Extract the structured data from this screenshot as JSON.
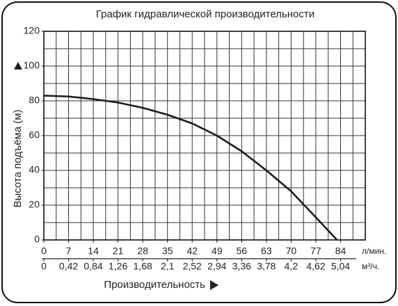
{
  "chart_data": {
    "type": "line",
    "title": "График гидравлической производительности",
    "y_label": "Высота подъёма (м)",
    "x_label": "Производительность",
    "x_unit": "л/мин.",
    "x2_unit": "м³/ч.",
    "x": [
      0,
      7,
      14,
      21,
      28,
      35,
      42,
      49,
      56,
      63,
      70,
      77,
      83
    ],
    "values": [
      83,
      82.5,
      81,
      79,
      76,
      72,
      67,
      60,
      51,
      40,
      28,
      13,
      0
    ],
    "color": "#1a1a1a",
    "xlim": [
      0,
      91
    ],
    "xticks": [
      0,
      7,
      14,
      21,
      28,
      35,
      42,
      49,
      56,
      63,
      70,
      77,
      84
    ],
    "x2lim": [
      0,
      5.46
    ],
    "x2ticks": [
      0,
      {
        "value": 0.42,
        "label": "0,42"
      },
      {
        "value": 0.84,
        "label": "0,84"
      },
      {
        "value": 1.26,
        "label": "1,26"
      },
      {
        "value": 1.68,
        "label": "1,68"
      },
      {
        "value": 2.1,
        "label": "2,1"
      },
      {
        "value": 2.52,
        "label": "2,52"
      },
      {
        "value": 2.94,
        "label": "2,94"
      },
      {
        "value": 3.36,
        "label": "3,36"
      },
      {
        "value": 3.78,
        "label": "3,78"
      },
      {
        "value": 4.2,
        "label": "4,2"
      },
      {
        "value": 4.62,
        "label": "4,62"
      },
      {
        "value": 5.04,
        "label": "5,04"
      }
    ],
    "ylim": [
      0,
      120
    ],
    "yticks": [
      0,
      20,
      40,
      60,
      80,
      100,
      120
    ],
    "minor_grid": {
      "x": 3.5,
      "y": 10
    }
  }
}
